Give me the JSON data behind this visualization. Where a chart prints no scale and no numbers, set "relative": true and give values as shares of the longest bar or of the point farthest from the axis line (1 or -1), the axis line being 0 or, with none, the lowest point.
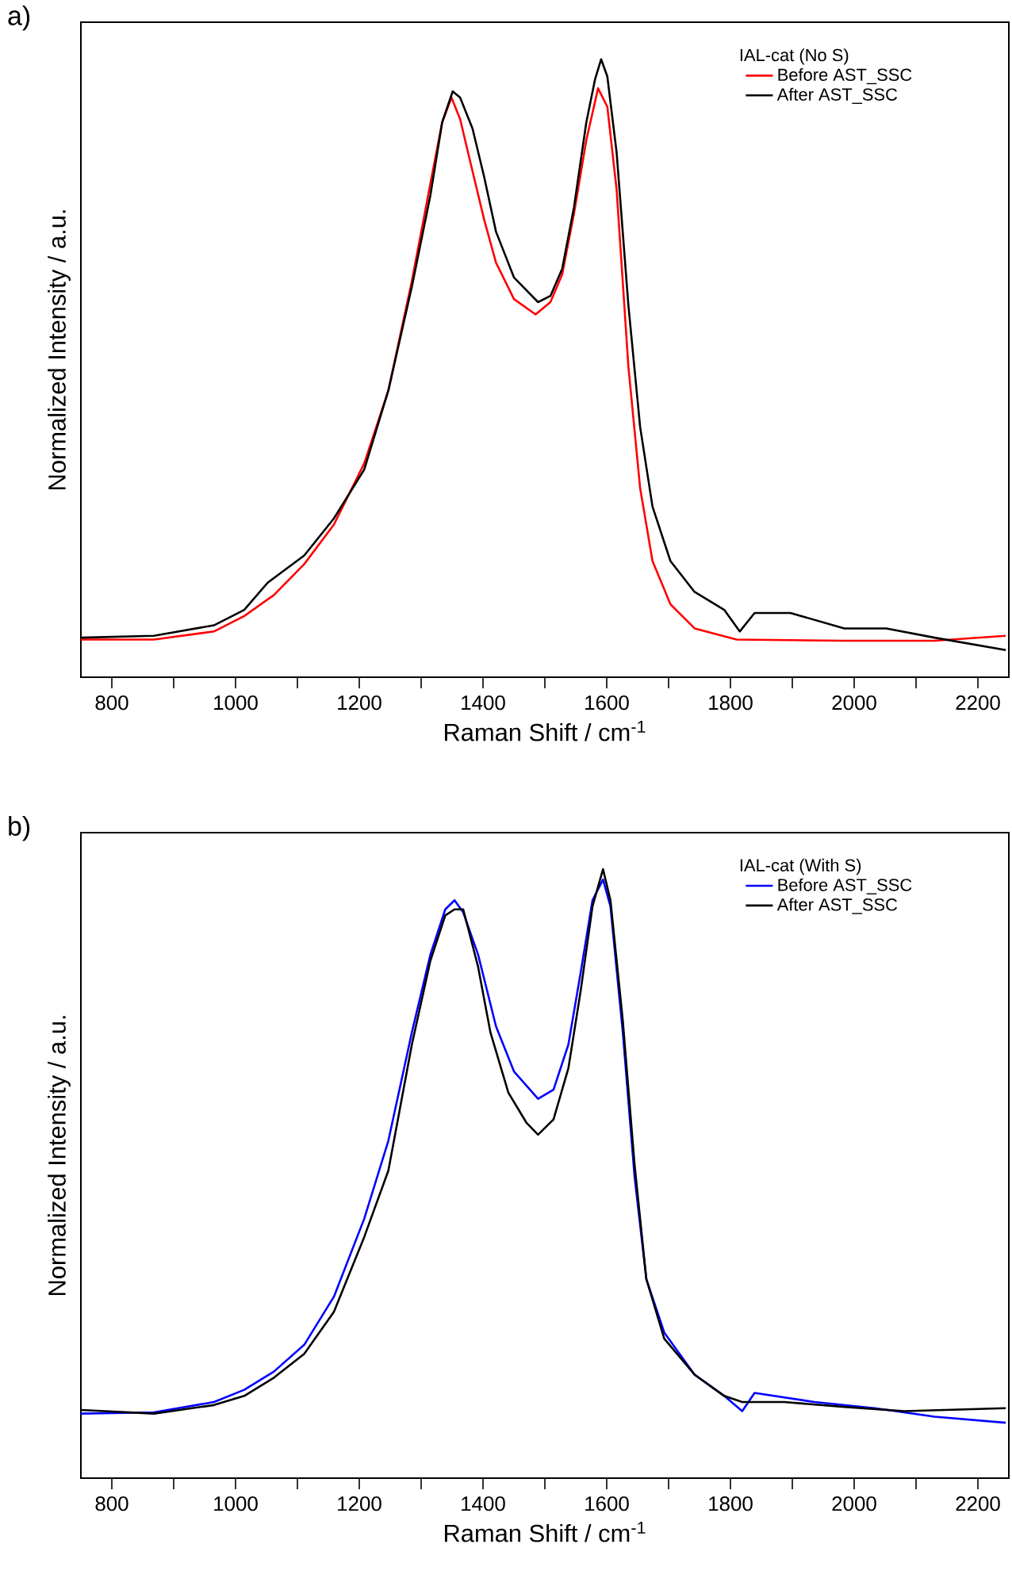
{
  "chart_data": [
    {
      "type": "line",
      "relative": true,
      "xlabel": "Raman Shift / cm$^{-1}$",
      "ylabel": "Normalized Intensity / a.u.",
      "legend_title": "IAL-cat (No S)",
      "legend": "top right",
      "annotations": [
        "a)"
      ],
      "xlim": [
        750,
        2250
      ],
      "xticks": [
        800,
        {
          "value": 900,
          "label": null
        },
        1000,
        {
          "value": 1100,
          "label": null
        },
        1200,
        {
          "value": 1300,
          "label": null
        },
        1400,
        {
          "value": 1500,
          "label": null
        },
        1600,
        {
          "value": 1700,
          "label": null
        },
        1800,
        {
          "value": 1900,
          "label": null
        },
        2000,
        {
          "value": 2100,
          "label": null
        },
        2200
      ],
      "series": [
        {
          "name": "Before AST_SSC",
          "color": "#ff0000",
          "x": [
            750,
            868,
            965,
            1014,
            1062,
            1111,
            1159,
            1208,
            1247,
            1285,
            1315,
            1334,
            1349,
            1363,
            1383,
            1402,
            1421,
            1450,
            1485,
            1509,
            1528,
            1547,
            1567,
            1586,
            1601,
            1616,
            1635,
            1654,
            1674,
            1703,
            1742,
            1810,
            1984,
            2130,
            2245
          ],
          "values": [
            0.061,
            0.061,
            0.074,
            0.099,
            0.133,
            0.183,
            0.247,
            0.346,
            0.464,
            0.641,
            0.799,
            0.898,
            0.938,
            0.903,
            0.819,
            0.74,
            0.671,
            0.612,
            0.587,
            0.607,
            0.652,
            0.75,
            0.869,
            0.953,
            0.923,
            0.789,
            0.503,
            0.306,
            0.188,
            0.118,
            0.079,
            0.061,
            0.059,
            0.059,
            0.067
          ]
        },
        {
          "name": "After AST_SSC",
          "color": "#000000",
          "x": [
            750,
            868,
            965,
            1014,
            1052,
            1111,
            1159,
            1208,
            1247,
            1285,
            1315,
            1334,
            1351,
            1363,
            1383,
            1402,
            1421,
            1450,
            1489,
            1509,
            1528,
            1547,
            1567,
            1581,
            1591,
            1601,
            1616,
            1635,
            1654,
            1674,
            1703,
            1742,
            1790,
            1815,
            1839,
            1897,
            1984,
            2052,
            2130,
            2245
          ],
          "values": [
            0.064,
            0.067,
            0.084,
            0.109,
            0.153,
            0.197,
            0.257,
            0.336,
            0.464,
            0.632,
            0.78,
            0.898,
            0.948,
            0.938,
            0.888,
            0.809,
            0.721,
            0.647,
            0.607,
            0.617,
            0.661,
            0.76,
            0.898,
            0.967,
            1.0,
            0.972,
            0.849,
            0.602,
            0.405,
            0.276,
            0.188,
            0.138,
            0.109,
            0.074,
            0.104,
            0.104,
            0.079,
            0.079,
            0.064,
            0.044
          ]
        }
      ]
    },
    {
      "type": "line",
      "relative": true,
      "xlabel": "Raman Shift / cm$^{-1}$",
      "ylabel": "Normalized Intensity / a.u.",
      "legend_title": "IAL-cat (With S)",
      "legend": "top right",
      "annotations": [
        "b)"
      ],
      "xlim": [
        750,
        2250
      ],
      "xticks": [
        800,
        {
          "value": 900,
          "label": null
        },
        1000,
        {
          "value": 1100,
          "label": null
        },
        1200,
        {
          "value": 1300,
          "label": null
        },
        1400,
        {
          "value": 1500,
          "label": null
        },
        1600,
        {
          "value": 1700,
          "label": null
        },
        1800,
        {
          "value": 1900,
          "label": null
        },
        2000,
        {
          "value": 2100,
          "label": null
        },
        2200
      ],
      "series": [
        {
          "name": "Before AST_SSC",
          "color": "#0000ff",
          "x": [
            750,
            868,
            965,
            1014,
            1062,
            1111,
            1159,
            1208,
            1247,
            1285,
            1315,
            1339,
            1354,
            1368,
            1392,
            1421,
            1450,
            1489,
            1514,
            1538,
            1558,
            1577,
            1594,
            1606,
            1626,
            1645,
            1664,
            1693,
            1742,
            1790,
            1819,
            1839,
            1936,
            2033,
            2130,
            2245
          ],
          "values": [
            0.106,
            0.108,
            0.125,
            0.145,
            0.175,
            0.219,
            0.298,
            0.426,
            0.554,
            0.732,
            0.86,
            0.934,
            0.949,
            0.929,
            0.86,
            0.742,
            0.668,
            0.623,
            0.638,
            0.712,
            0.831,
            0.949,
            0.983,
            0.939,
            0.732,
            0.495,
            0.327,
            0.239,
            0.17,
            0.135,
            0.11,
            0.14,
            0.125,
            0.115,
            0.101,
            0.091
          ]
        },
        {
          "name": "After AST_SSC",
          "color": "#000000",
          "x": [
            750,
            868,
            965,
            1014,
            1062,
            1111,
            1159,
            1208,
            1247,
            1285,
            1315,
            1339,
            1354,
            1368,
            1392,
            1412,
            1441,
            1470,
            1489,
            1514,
            1538,
            1558,
            1577,
            1594,
            1606,
            1626,
            1645,
            1664,
            1693,
            1742,
            1790,
            1819,
            1887,
            1984,
            2081,
            2245
          ],
          "values": [
            0.112,
            0.106,
            0.12,
            0.135,
            0.165,
            0.204,
            0.273,
            0.396,
            0.505,
            0.712,
            0.85,
            0.924,
            0.934,
            0.934,
            0.84,
            0.732,
            0.633,
            0.584,
            0.564,
            0.589,
            0.673,
            0.801,
            0.939,
            1.0,
            0.949,
            0.751,
            0.515,
            0.327,
            0.229,
            0.17,
            0.135,
            0.125,
            0.125,
            0.117,
            0.11,
            0.115
          ]
        }
      ]
    }
  ]
}
